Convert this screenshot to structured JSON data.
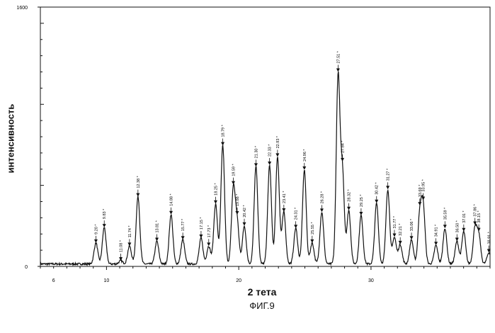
{
  "chart_data": {
    "type": "line",
    "ylabel": "интенсивность",
    "xlabel": "2 тета",
    "caption": "ФИГ.9",
    "xlim": [
      5,
      39
    ],
    "ylim": [
      0,
      1600
    ],
    "yticks": [
      0,
      1600
    ],
    "xticks": [
      6,
      10,
      20,
      30
    ],
    "grid": false,
    "baseline": 15,
    "noise": 6,
    "peaks": [
      {
        "x": 9.2,
        "y": 130,
        "label": "9.20 *"
      },
      {
        "x": 9.83,
        "y": 225,
        "label": "9.83 *"
      },
      {
        "x": 11.08,
        "y": 20,
        "label": "11.08 *"
      },
      {
        "x": 11.74,
        "y": 110,
        "label": "11.74 *"
      },
      {
        "x": 12.38,
        "y": 415,
        "label": "12.38 *"
      },
      {
        "x": 13.81,
        "y": 140,
        "label": "13.81 *"
      },
      {
        "x": 14.88,
        "y": 305,
        "label": "14.88 *"
      },
      {
        "x": 15.77,
        "y": 150,
        "label": "15.77 *"
      },
      {
        "x": 17.15,
        "y": 160,
        "label": "17.15 *"
      },
      {
        "x": 17.73,
        "y": 110,
        "label": "17.73 *"
      },
      {
        "x": 18.25,
        "y": 370,
        "label": "18.25 *"
      },
      {
        "x": 18.79,
        "y": 730,
        "label": "18.79 *"
      },
      {
        "x": 19.59,
        "y": 460,
        "label": "19.59 *"
      },
      {
        "x": 19.88,
        "y": 250,
        "label": "19.88 *"
      },
      {
        "x": 20.42,
        "y": 235,
        "label": "20.42 *"
      },
      {
        "x": 21.3,
        "y": 600,
        "label": "21.30 *"
      },
      {
        "x": 22.33,
        "y": 610,
        "label": "22.33 *"
      },
      {
        "x": 22.93,
        "y": 660,
        "label": "22.93 *"
      },
      {
        "x": 23.41,
        "y": 320,
        "label": "23.41 *"
      },
      {
        "x": 24.31,
        "y": 220,
        "label": "24.31 *"
      },
      {
        "x": 24.96,
        "y": 580,
        "label": "24.96 *"
      },
      {
        "x": 25.55,
        "y": 130,
        "label": "25.55 *"
      },
      {
        "x": 26.28,
        "y": 320,
        "label": "26.28 *"
      },
      {
        "x": 27.51,
        "y": 1150,
        "label": "27.51 *"
      },
      {
        "x": 27.84,
        "y": 560,
        "label": "27.84 *"
      },
      {
        "x": 28.32,
        "y": 330,
        "label": "28.32 *"
      },
      {
        "x": 29.25,
        "y": 300,
        "label": "29.25 *"
      },
      {
        "x": 30.42,
        "y": 375,
        "label": "30.42 *"
      },
      {
        "x": 31.27,
        "y": 460,
        "label": "31.27 *"
      },
      {
        "x": 31.77,
        "y": 165,
        "label": "31.77 *"
      },
      {
        "x": 32.21,
        "y": 120,
        "label": "32.21 *"
      },
      {
        "x": 33.06,
        "y": 150,
        "label": "33.06 *"
      },
      {
        "x": 33.69,
        "y": 300,
        "label": "33.69 *"
      },
      {
        "x": 33.95,
        "y": 340,
        "label": "33.95 *"
      },
      {
        "x": 34.91,
        "y": 115,
        "label": "34.91 *"
      },
      {
        "x": 35.59,
        "y": 220,
        "label": "35.59 *"
      },
      {
        "x": 36.5,
        "y": 140,
        "label": "36.50 *"
      },
      {
        "x": 37.01,
        "y": 200,
        "label": "37.01 *"
      },
      {
        "x": 37.86,
        "y": 220,
        "label": "37.86 *"
      },
      {
        "x": 38.15,
        "y": 175,
        "label": "38.15 *"
      },
      {
        "x": 38.91,
        "y": 70,
        "label": "38.91 *"
      }
    ]
  }
}
